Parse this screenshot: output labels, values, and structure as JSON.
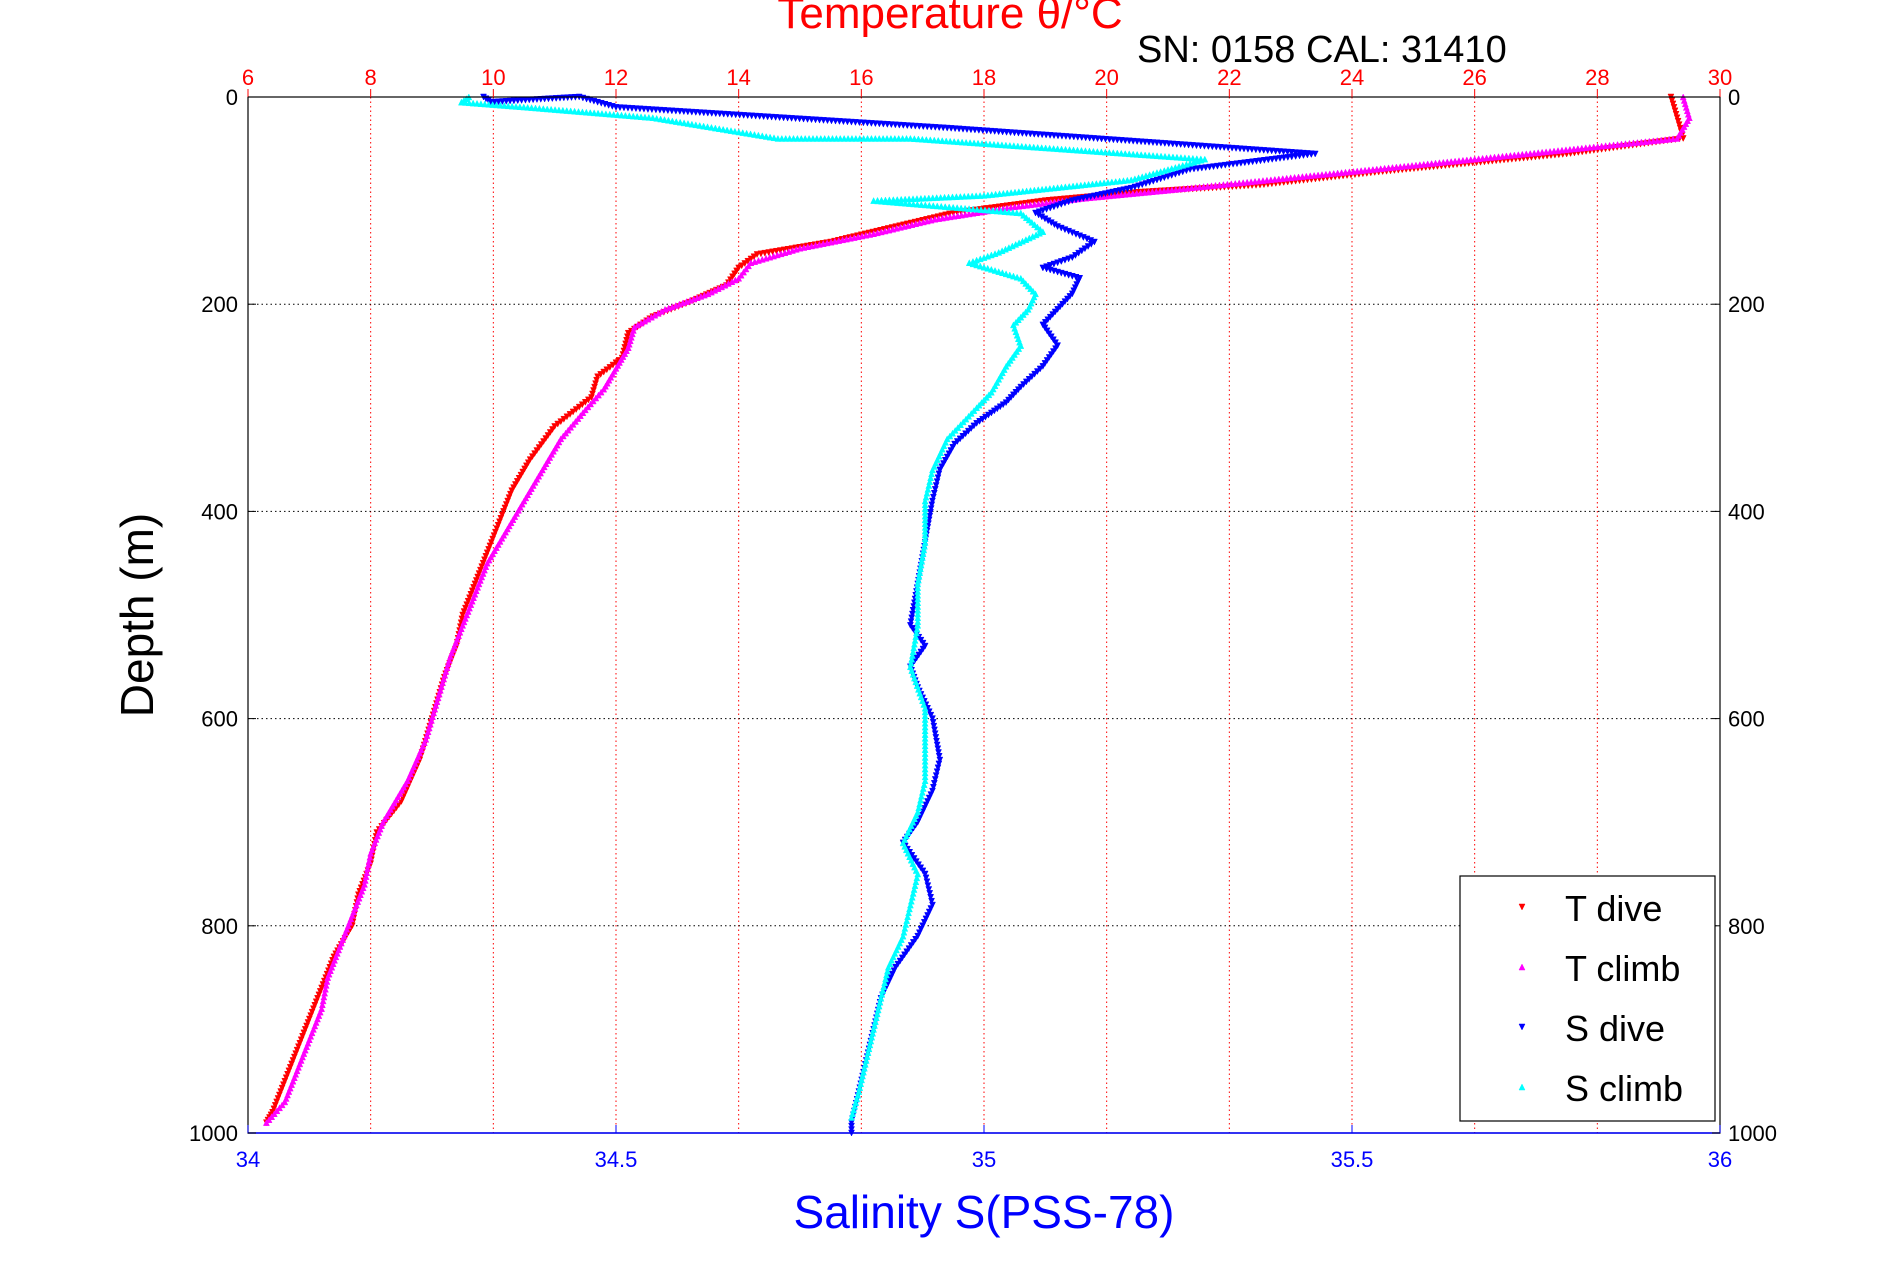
{
  "chart_data": {
    "type": "scatter",
    "title": "Temperature θ/°C",
    "subtitle": "SN: 0158  CAL: 31410",
    "xlabel": "Salinity S(PSS-78)",
    "ylabel": "Depth (m)",
    "colors": {
      "temperature_axis": "#ff0000",
      "salinity_axis": "#0000ff",
      "depth_axis": "#000000",
      "t_dive": "#ff0000",
      "t_climb": "#ff00ff",
      "s_dive": "#0000ff",
      "s_climb": "#00ffff"
    },
    "axes": {
      "temperature": {
        "lim": [
          6,
          30
        ],
        "ticks": [
          "6",
          "8",
          "10",
          "12",
          "14",
          "16",
          "18",
          "20",
          "22",
          "24",
          "26",
          "28",
          "30"
        ]
      },
      "salinity": {
        "lim": [
          34,
          36
        ],
        "ticks": [
          "34",
          "34.5",
          "35",
          "35.5",
          "36"
        ]
      },
      "depth": {
        "lim": [
          0,
          1000
        ],
        "reversed": true,
        "ticks": [
          "0",
          "200",
          "400",
          "600",
          "800",
          "1000"
        ]
      }
    },
    "grid": true,
    "legend": {
      "position": "bottom-right",
      "entries": [
        "T dive",
        "T climb",
        "S dive",
        "S climb"
      ]
    },
    "series": [
      {
        "name": "T dive",
        "axis": "temperature",
        "marker": "triangle-down",
        "points": [
          [
            29.2,
            0
          ],
          [
            29.3,
            20
          ],
          [
            29.4,
            40
          ],
          [
            27.5,
            55
          ],
          [
            24.5,
            72
          ],
          [
            22.5,
            85
          ],
          [
            20.5,
            92
          ],
          [
            19.0,
            100
          ],
          [
            17.5,
            112
          ],
          [
            16.5,
            126
          ],
          [
            15.5,
            140
          ],
          [
            14.3,
            152
          ],
          [
            14.0,
            165
          ],
          [
            13.8,
            182
          ],
          [
            13.2,
            198
          ],
          [
            12.6,
            212
          ],
          [
            12.2,
            228
          ],
          [
            12.1,
            252
          ],
          [
            11.7,
            270
          ],
          [
            11.6,
            290
          ],
          [
            11.0,
            318
          ],
          [
            10.6,
            350
          ],
          [
            10.3,
            380
          ],
          [
            10.1,
            410
          ],
          [
            9.9,
            440
          ],
          [
            9.7,
            470
          ],
          [
            9.5,
            500
          ],
          [
            9.4,
            530
          ],
          [
            9.2,
            560
          ],
          [
            9.0,
            600
          ],
          [
            8.8,
            640
          ],
          [
            8.5,
            680
          ],
          [
            8.1,
            710
          ],
          [
            8.0,
            740
          ],
          [
            7.8,
            770
          ],
          [
            7.7,
            800
          ],
          [
            7.4,
            830
          ],
          [
            7.2,
            860
          ],
          [
            7.0,
            890
          ],
          [
            6.8,
            920
          ],
          [
            6.6,
            950
          ],
          [
            6.4,
            980
          ],
          [
            6.3,
            990
          ]
        ]
      },
      {
        "name": "T climb",
        "axis": "temperature",
        "marker": "triangle-up",
        "points": [
          [
            29.4,
            0
          ],
          [
            29.5,
            20
          ],
          [
            29.3,
            40
          ],
          [
            26.0,
            60
          ],
          [
            23.0,
            78
          ],
          [
            21.0,
            90
          ],
          [
            19.6,
            98
          ],
          [
            18.5,
            106
          ],
          [
            17.2,
            118
          ],
          [
            16.2,
            132
          ],
          [
            15.0,
            146
          ],
          [
            14.2,
            160
          ],
          [
            14.0,
            175
          ],
          [
            13.5,
            190
          ],
          [
            12.8,
            205
          ],
          [
            12.3,
            222
          ],
          [
            12.2,
            242
          ],
          [
            12.0,
            262
          ],
          [
            11.8,
            282
          ],
          [
            11.5,
            302
          ],
          [
            11.1,
            330
          ],
          [
            10.8,
            360
          ],
          [
            10.5,
            390
          ],
          [
            10.2,
            420
          ],
          [
            9.9,
            450
          ],
          [
            9.7,
            480
          ],
          [
            9.5,
            510
          ],
          [
            9.3,
            540
          ],
          [
            9.1,
            580
          ],
          [
            8.9,
            620
          ],
          [
            8.6,
            660
          ],
          [
            8.2,
            700
          ],
          [
            8.0,
            730
          ],
          [
            7.9,
            760
          ],
          [
            7.7,
            790
          ],
          [
            7.5,
            820
          ],
          [
            7.3,
            850
          ],
          [
            7.2,
            880
          ],
          [
            7.0,
            910
          ],
          [
            6.8,
            940
          ],
          [
            6.6,
            970
          ],
          [
            6.3,
            990
          ]
        ]
      },
      {
        "name": "S dive",
        "axis": "salinity",
        "marker": "triangle-down",
        "points": [
          [
            34.32,
            0
          ],
          [
            34.33,
            5
          ],
          [
            34.45,
            0
          ],
          [
            34.5,
            10
          ],
          [
            34.95,
            30
          ],
          [
            35.45,
            55
          ],
          [
            35.28,
            70
          ],
          [
            35.2,
            88
          ],
          [
            35.12,
            100
          ],
          [
            35.07,
            112
          ],
          [
            35.1,
            125
          ],
          [
            35.15,
            140
          ],
          [
            35.12,
            155
          ],
          [
            35.08,
            165
          ],
          [
            35.13,
            175
          ],
          [
            35.12,
            190
          ],
          [
            35.1,
            205
          ],
          [
            35.08,
            220
          ],
          [
            35.1,
            240
          ],
          [
            35.08,
            260
          ],
          [
            35.05,
            280
          ],
          [
            35.03,
            295
          ],
          [
            34.99,
            315
          ],
          [
            34.96,
            335
          ],
          [
            34.94,
            360
          ],
          [
            34.93,
            390
          ],
          [
            34.92,
            430
          ],
          [
            34.91,
            470
          ],
          [
            34.9,
            510
          ],
          [
            34.92,
            530
          ],
          [
            34.9,
            550
          ],
          [
            34.91,
            570
          ],
          [
            34.93,
            600
          ],
          [
            34.94,
            640
          ],
          [
            34.93,
            670
          ],
          [
            34.91,
            700
          ],
          [
            34.89,
            720
          ],
          [
            34.92,
            750
          ],
          [
            34.93,
            780
          ],
          [
            34.91,
            810
          ],
          [
            34.88,
            840
          ],
          [
            34.86,
            870
          ],
          [
            34.85,
            900
          ],
          [
            34.84,
            930
          ],
          [
            34.83,
            960
          ],
          [
            34.82,
            990
          ],
          [
            34.82,
            1000
          ]
        ]
      },
      {
        "name": "S climb",
        "axis": "salinity",
        "marker": "triangle-up",
        "points": [
          [
            34.3,
            0
          ],
          [
            34.29,
            5
          ],
          [
            34.38,
            10
          ],
          [
            34.55,
            20
          ],
          [
            34.72,
            40
          ],
          [
            34.9,
            40
          ],
          [
            35.1,
            50
          ],
          [
            35.3,
            60
          ],
          [
            35.2,
            80
          ],
          [
            35.0,
            95
          ],
          [
            34.85,
            100
          ],
          [
            35.05,
            112
          ],
          [
            35.08,
            130
          ],
          [
            35.02,
            150
          ],
          [
            34.98,
            160
          ],
          [
            35.05,
            175
          ],
          [
            35.07,
            190
          ],
          [
            35.06,
            205
          ],
          [
            35.04,
            220
          ],
          [
            35.05,
            240
          ],
          [
            35.03,
            260
          ],
          [
            35.01,
            285
          ],
          [
            34.99,
            300
          ],
          [
            34.95,
            330
          ],
          [
            34.93,
            360
          ],
          [
            34.92,
            390
          ],
          [
            34.92,
            430
          ],
          [
            34.91,
            470
          ],
          [
            34.91,
            510
          ],
          [
            34.9,
            550
          ],
          [
            34.92,
            590
          ],
          [
            34.92,
            630
          ],
          [
            34.92,
            660
          ],
          [
            34.91,
            690
          ],
          [
            34.89,
            720
          ],
          [
            34.91,
            750
          ],
          [
            34.9,
            780
          ],
          [
            34.89,
            810
          ],
          [
            34.87,
            840
          ],
          [
            34.86,
            870
          ],
          [
            34.85,
            900
          ],
          [
            34.84,
            930
          ],
          [
            34.83,
            960
          ],
          [
            34.82,
            985
          ]
        ]
      }
    ]
  }
}
